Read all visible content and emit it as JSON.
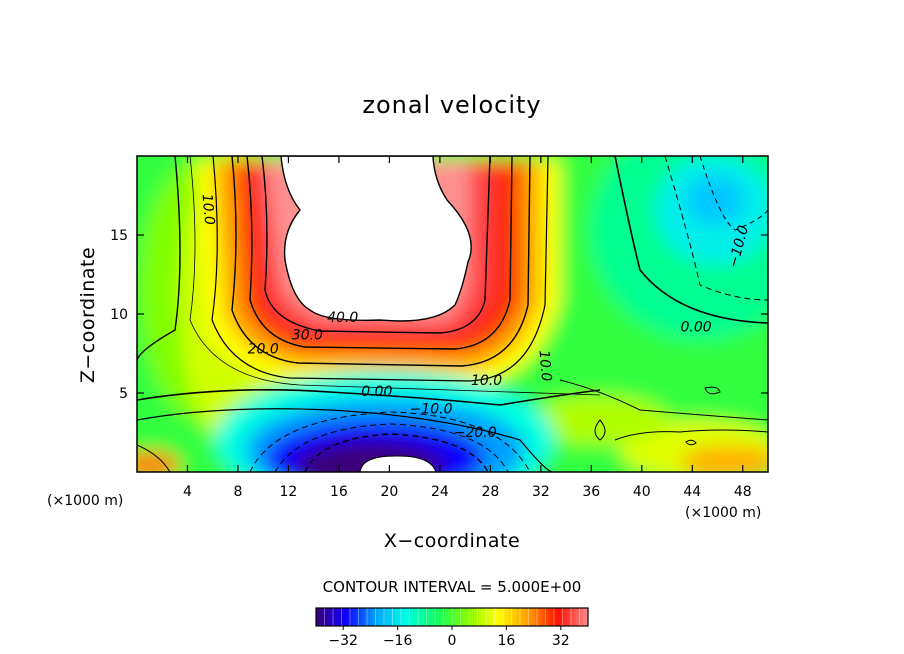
{
  "chart_data": {
    "type": "contour",
    "title": "zonal velocity",
    "xlabel": "X−coordinate",
    "ylabel": "Z−coordinate",
    "x_unit": "(×1000 m)",
    "y_unit": "(×1000 m)",
    "xlim": [
      0,
      50
    ],
    "ylim": [
      0,
      20
    ],
    "x_ticks": [
      4,
      8,
      12,
      16,
      20,
      24,
      28,
      32,
      36,
      40,
      44,
      48
    ],
    "y_ticks": [
      5,
      10,
      15
    ],
    "contour_interval_text": "CONTOUR INTERVAL = 5.000E+00",
    "contour_labels": [
      {
        "text": "40.0",
        "x": 16.3,
        "y": 9.5
      },
      {
        "text": "30.0",
        "x": 13.5,
        "y": 8.4
      },
      {
        "text": "20.0",
        "x": 10.0,
        "y": 7.5
      },
      {
        "text": "10.0",
        "x": 5.3,
        "y": 16.6,
        "rotate": 85
      },
      {
        "text": "0.00",
        "x": 19.0,
        "y": 4.8
      },
      {
        "text": "−10.0",
        "x": 23.3,
        "y": 3.7
      },
      {
        "text": "−20.0",
        "x": 26.8,
        "y": 2.2
      },
      {
        "text": "10.0",
        "x": 27.7,
        "y": 5.5
      },
      {
        "text": "10.0",
        "x": 32.0,
        "y": 6.7,
        "rotate": 85
      },
      {
        "text": "0.00",
        "x": 44.3,
        "y": 8.9
      },
      {
        "text": "−10.0",
        "x": 48.0,
        "y": 14.2,
        "rotate": -75
      }
    ],
    "features": [
      {
        "kind": "jet_max",
        "x": 20,
        "y": 15,
        "value": 45,
        "note": "white region exceeds colour scale"
      },
      {
        "kind": "jet_min",
        "x": 19,
        "y": 1.5,
        "value": -40,
        "note": "white region below colour scale"
      },
      {
        "kind": "negative_cell",
        "x": 46,
        "y": 16,
        "value": -15
      }
    ],
    "colorbar": {
      "min": -40,
      "max": 40,
      "ticks": [
        -32,
        -16,
        0,
        16,
        32
      ],
      "colormap": [
        "#3a007a",
        "#1000ff",
        "#00a6ff",
        "#00ffe0",
        "#10ff60",
        "#80ff00",
        "#ffff00",
        "#ffa000",
        "#ff1000",
        "#ff8c8c"
      ]
    }
  }
}
